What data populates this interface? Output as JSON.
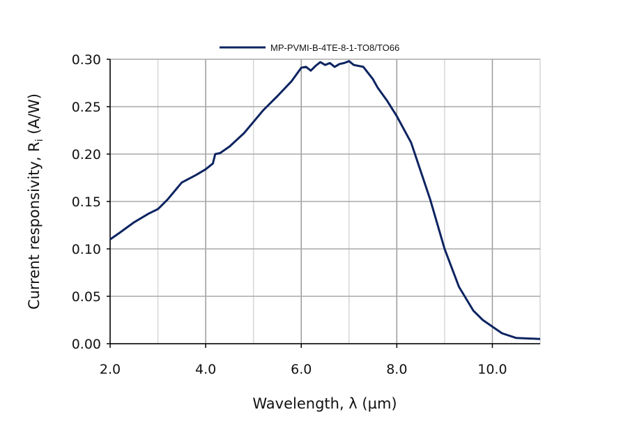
{
  "chart_data": {
    "type": "line",
    "title": "",
    "xlabel": "Wavelength, λ (µm)",
    "ylabel": "Current responsivity, R",
    "ylabel_subscript": "i",
    "ylabel_unit": " (A/W)",
    "xlim": [
      2.0,
      11.0
    ],
    "ylim": [
      0.0,
      0.3
    ],
    "xticks": [
      2.0,
      4.0,
      6.0,
      8.0,
      10.0
    ],
    "xtick_labels": [
      "2.0",
      "4.0",
      "6.0",
      "8.0",
      "10.0"
    ],
    "yticks": [
      0,
      0.05,
      0.1,
      0.15,
      0.2,
      0.25,
      0.3
    ],
    "ytick_labels": [
      "0.00",
      "0.05",
      "0.10",
      "0.15",
      "0.20",
      "0.25",
      "0.30"
    ],
    "grid": true,
    "legend_position": "top-center",
    "series": [
      {
        "name": "MP-PVMI-B-4TE-8-1-TO8/TO66",
        "color": "#0d2461",
        "x": [
          2.0,
          2.2,
          2.5,
          2.8,
          3.0,
          3.2,
          3.5,
          3.8,
          4.0,
          4.15,
          4.2,
          4.3,
          4.5,
          4.8,
          5.0,
          5.2,
          5.5,
          5.8,
          6.0,
          6.1,
          6.2,
          6.3,
          6.4,
          6.5,
          6.6,
          6.7,
          6.8,
          6.9,
          7.0,
          7.1,
          7.3,
          7.5,
          7.6,
          7.8,
          8.0,
          8.3,
          8.5,
          8.7,
          9.0,
          9.3,
          9.6,
          9.8,
          10.0,
          10.2,
          10.5,
          11.0
        ],
        "y": [
          0.11,
          0.117,
          0.128,
          0.137,
          0.142,
          0.152,
          0.17,
          0.178,
          0.184,
          0.19,
          0.2,
          0.201,
          0.208,
          0.222,
          0.234,
          0.246,
          0.261,
          0.277,
          0.291,
          0.292,
          0.288,
          0.293,
          0.297,
          0.294,
          0.296,
          0.292,
          0.295,
          0.296,
          0.298,
          0.294,
          0.292,
          0.279,
          0.27,
          0.256,
          0.24,
          0.212,
          0.182,
          0.152,
          0.1,
          0.06,
          0.035,
          0.025,
          0.018,
          0.011,
          0.006,
          0.005
        ]
      }
    ]
  }
}
